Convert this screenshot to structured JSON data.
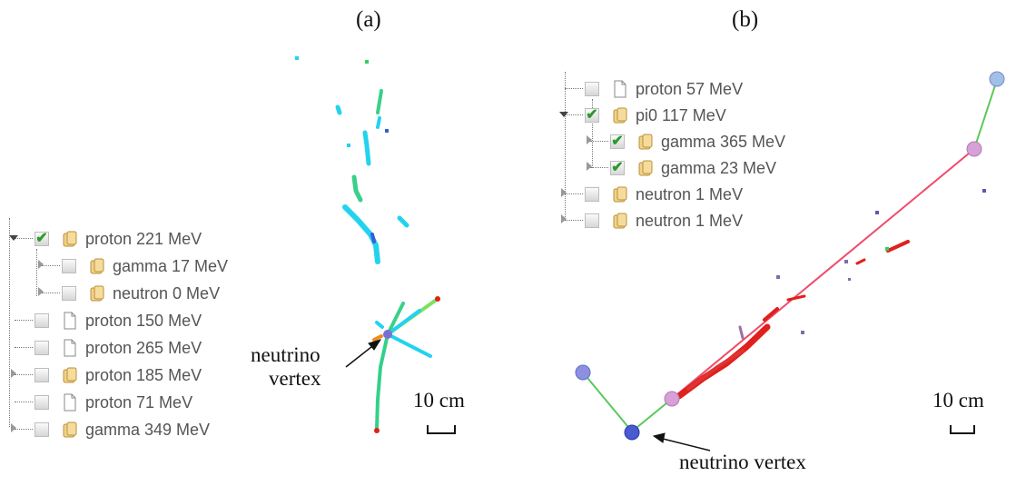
{
  "panels": {
    "a": {
      "label": "(a)",
      "tree": [
        {
          "label": "proton 221 MeV",
          "checked": true,
          "icon": "folder-icon",
          "toggle": "open"
        },
        {
          "label": "gamma 17 MeV",
          "checked": false,
          "icon": "folder-icon",
          "toggle": "closed"
        },
        {
          "label": "neutron 0 MeV",
          "checked": false,
          "icon": "folder-icon",
          "toggle": "closed"
        },
        {
          "label": "proton 150 MeV",
          "checked": false,
          "icon": "file-icon",
          "toggle": "none"
        },
        {
          "label": "proton 265 MeV",
          "checked": false,
          "icon": "file-icon",
          "toggle": "none"
        },
        {
          "label": "proton 185 MeV",
          "checked": false,
          "icon": "folder-icon",
          "toggle": "closed"
        },
        {
          "label": "proton 71 MeV",
          "checked": false,
          "icon": "file-icon",
          "toggle": "none"
        },
        {
          "label": "gamma 349 MeV",
          "checked": false,
          "icon": "folder-icon",
          "toggle": "closed"
        }
      ],
      "vertex_label_line1": "neutrino",
      "vertex_label_line2": "vertex",
      "scale_label": "10 cm"
    },
    "b": {
      "label": "(b)",
      "tree": [
        {
          "label": "proton 57 MeV",
          "checked": false,
          "icon": "file-icon",
          "toggle": "none"
        },
        {
          "label": "pi0 117 MeV",
          "checked": true,
          "icon": "folder-icon",
          "toggle": "open"
        },
        {
          "label": "gamma 365 MeV",
          "checked": true,
          "icon": "folder-icon",
          "toggle": "closed"
        },
        {
          "label": "gamma 23 MeV",
          "checked": true,
          "icon": "folder-icon",
          "toggle": "closed"
        },
        {
          "label": "neutron 1 MeV",
          "checked": false,
          "icon": "folder-icon",
          "toggle": "closed"
        },
        {
          "label": "neutron 1 MeV",
          "checked": false,
          "icon": "folder-icon",
          "toggle": "closed"
        }
      ],
      "vertex_label": "neutrino vertex",
      "scale_label": "10 cm"
    }
  },
  "colors": {
    "track_cyan": "#22d3ee",
    "track_green": "#34d058",
    "shower_red": "#e0201c",
    "pi0_line": "#f04a6a",
    "gamma_line": "#5ac85a",
    "check_green": "#2a9a2a"
  }
}
